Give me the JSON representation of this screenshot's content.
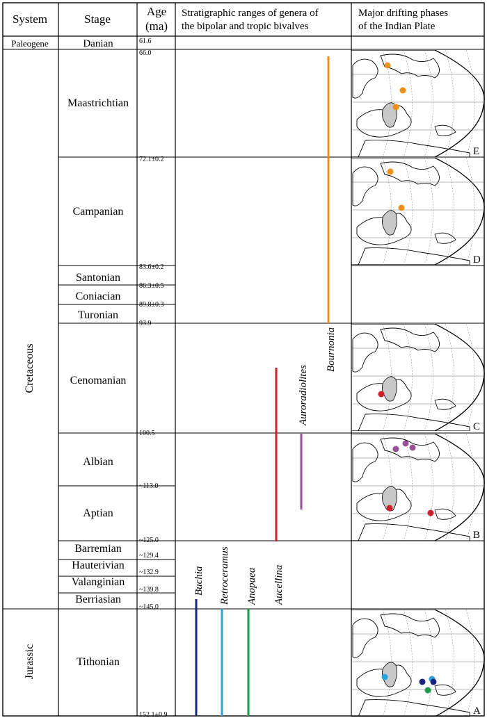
{
  "header": {
    "system": "System",
    "stage": "Stage",
    "age_line1": "Age",
    "age_line2": "(ma)",
    "ranges_line1": "Stratigraphic ranges of genera of",
    "ranges_line2": "the bipolar and tropic bivalves",
    "phases_line1": "Major drifting phases",
    "phases_line2": "of the Indian Plate"
  },
  "systems": [
    "Paleogene",
    "Cretaceous",
    "Jurassic"
  ],
  "stages": [
    "Danian",
    "Maastrichtian",
    "Campanian",
    "Santonian",
    "Coniacian",
    "Turonian",
    "Cenomanian",
    "Albian",
    "Aptian",
    "Barremian",
    "Hauterivian",
    "Valanginian",
    "Berriasian",
    "Tithonian"
  ],
  "ages": [
    "61.6",
    "66.0",
    "72.1±0.2",
    "83.6±0.2",
    "86.3±0.5",
    "89.8±0.3",
    "93.9",
    "100.5",
    "~113.0",
    "~125.0",
    "~129.4",
    "~132.9",
    "~139.8",
    "~145.0",
    "152.1±0.9"
  ],
  "genera": [
    {
      "name": "Buchia",
      "color": "#1a237e",
      "range": "Berriasian–Tithonian"
    },
    {
      "name": "Retroceramus",
      "color": "#29a3d9",
      "range": "Berriasian–Tithonian"
    },
    {
      "name": "Anopaea",
      "color": "#1f9a4a",
      "range": "Berriasian–Tithonian"
    },
    {
      "name": "Aucellina",
      "color": "#cc1f2a",
      "range": "Barremian–Cenomanian"
    },
    {
      "name": "Auroradiolites",
      "color": "#9b4f96",
      "range": "Aptian–Albian"
    },
    {
      "name": "Bournonia",
      "color": "#f0901c",
      "range": "Turonian–Maastrichtian"
    }
  ],
  "maps": [
    {
      "label": "E",
      "stage": "Maastrichtian"
    },
    {
      "label": "D",
      "stage": "Campanian"
    },
    {
      "label": "C",
      "stage": "Cenomanian"
    },
    {
      "label": "B",
      "stage": "Albian–Aptian"
    },
    {
      "label": "A",
      "stage": "Tithonian"
    }
  ],
  "colors": {
    "map_land": "#c8c8c8",
    "border": "#000000",
    "graticule": "#777777"
  }
}
